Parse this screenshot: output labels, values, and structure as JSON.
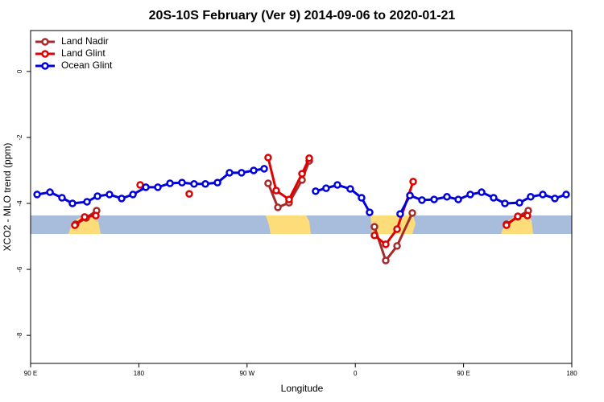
{
  "chart_data": {
    "type": "line",
    "title": "20S-10S February (Ver 9)   2014-09-06 to 2020-01-21",
    "x_label": "Longitude",
    "y_label": "XCO2 - MLO trend (ppm)",
    "xlim": [
      90,
      540
    ],
    "ylim": [
      -8.85,
      1.24
    ],
    "xticks": [
      {
        "value": 90,
        "label": "90 E"
      },
      180,
      {
        "value": 270,
        "label": "90 W"
      },
      {
        "value": 360,
        "label": "0"
      },
      {
        "value": 450,
        "label": "90 E"
      },
      180
    ],
    "yticks": [
      0,
      -2,
      -4,
      -6,
      -8
    ],
    "legend": "top-left",
    "grid": false,
    "series": [
      {
        "name": "Land Nadir",
        "color": "#a52a2a",
        "x": [
          127.5,
          136.2,
          144.9,
          null,
          287.5,
          295.6,
          304.9,
          315.7,
          321.7,
          null,
          375.9,
          385.3,
          394.7,
          407.4,
          null,
          485.7,
          495.1,
          503.8
        ],
        "values": [
          -4.63,
          -4.44,
          -4.22,
          null,
          -3.39,
          -4.12,
          -3.98,
          -3.29,
          -2.71,
          null,
          -4.71,
          -5.73,
          -5.29,
          -4.29,
          null,
          -4.63,
          -4.41,
          -4.22
        ]
      },
      {
        "name": "Land Glint",
        "color": "#e00000",
        "x": [
          126.8,
          134.9,
          144.2,
          null,
          181.1,
          null,
          221.9,
          null,
          287.5,
          294.2,
          304.9,
          315.7,
          321.7,
          null,
          375.9,
          385.3,
          394.7,
          408.1,
          null,
          485.7,
          495.1,
          503.1
        ],
        "values": [
          -4.66,
          -4.41,
          -4.37,
          null,
          -3.44,
          null,
          -3.71,
          null,
          -2.61,
          -3.61,
          -3.88,
          -3.1,
          -2.63,
          null,
          -4.97,
          -5.24,
          -4.78,
          -3.34,
          null,
          -4.66,
          -4.39,
          -4.37
        ]
      },
      {
        "name": "Ocean Glint",
        "color": "#0000dd",
        "x": [
          95.4,
          106.1,
          116.1,
          124.8,
          136.9,
          145.6,
          155.6,
          165.7,
          175.1,
          185.8,
          195.8,
          205.9,
          215.9,
          225.9,
          235.3,
          245.4,
          255.4,
          265.4,
          275.5,
          284.2,
          null,
          327.0,
          335.7,
          345.1,
          355.8,
          365.2,
          371.9,
          null,
          397.3,
          405.4,
          415.4,
          425.5,
          436.2,
          445.6,
          455.6,
          465.0,
          475.0,
          484.4,
          496.5,
          505.8,
          515.9,
          525.9,
          535.3
        ],
        "values": [
          -3.73,
          -3.66,
          -3.83,
          -4.0,
          -3.95,
          -3.78,
          -3.73,
          -3.85,
          -3.73,
          -3.51,
          -3.51,
          -3.39,
          -3.37,
          -3.41,
          -3.41,
          -3.37,
          -3.07,
          -3.07,
          -3.0,
          -2.95,
          null,
          -3.63,
          -3.54,
          -3.44,
          -3.56,
          -3.83,
          -4.27,
          null,
          -4.32,
          -3.76,
          -3.9,
          -3.88,
          -3.8,
          -3.88,
          -3.73,
          -3.66,
          -3.83,
          -4.0,
          -3.98,
          -3.8,
          -3.73,
          -3.85,
          -3.73
        ]
      }
    ]
  }
}
